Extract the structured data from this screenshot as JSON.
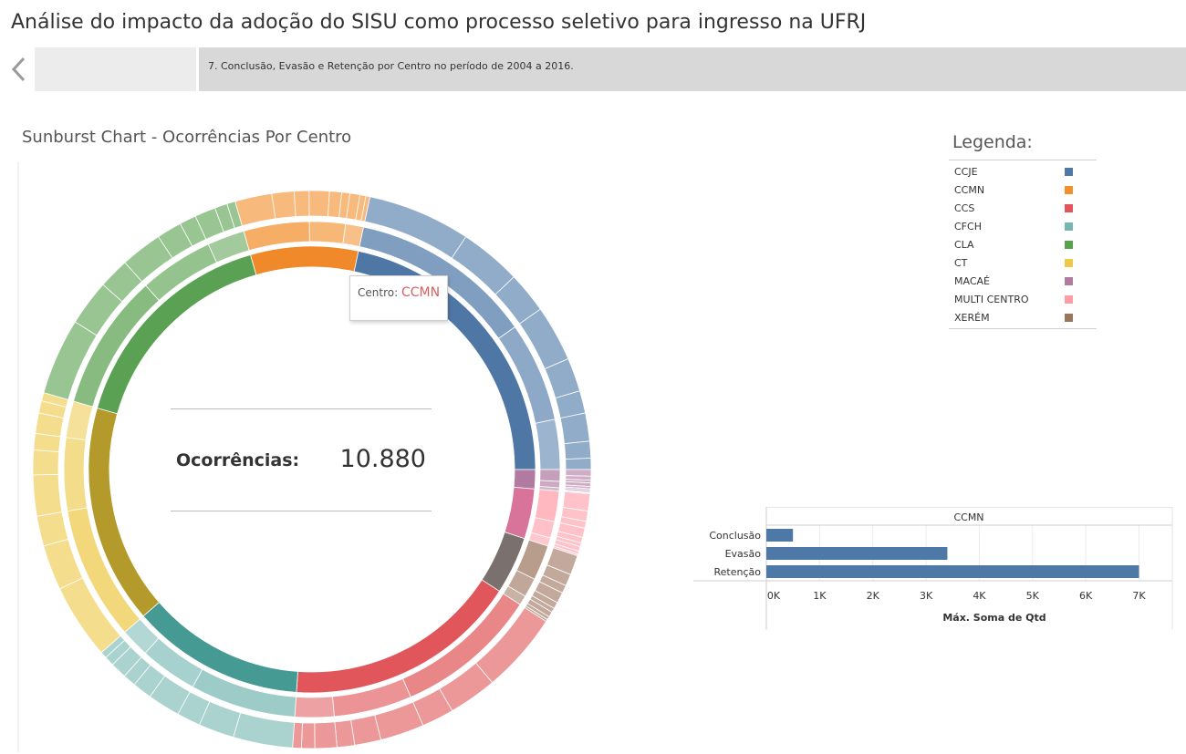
{
  "header": {
    "title": "Análise do impacto da adoção do SISU como processo seletivo para ingresso na UFRJ"
  },
  "story": {
    "back_icon": "chevron-left-icon",
    "points": [
      {
        "caption": "",
        "active": false
      },
      {
        "caption": "7. Conclusão, Evasão e Retenção por Centro no período de 2004 a 2016.",
        "active": true
      }
    ]
  },
  "sunburst": {
    "title": "Sunburst Chart - Ocorrências Por Centro",
    "kpi": {
      "label": "Ocorrências:",
      "value": "10.880"
    },
    "tooltip": {
      "key": "Centro:",
      "value": "CCMN"
    }
  },
  "legend": {
    "title": "Legenda:",
    "items": [
      {
        "label": "CCJE",
        "color": "#4e79a7"
      },
      {
        "label": "CCMN",
        "color": "#f28e2b"
      },
      {
        "label": "CCS",
        "color": "#e15759"
      },
      {
        "label": "CFCH",
        "color": "#76b7b2"
      },
      {
        "label": "CLA",
        "color": "#59a14f"
      },
      {
        "label": "CT",
        "color": "#edc948"
      },
      {
        "label": "MACAÉ",
        "color": "#b07aa1"
      },
      {
        "label": "MULTI CENTRO",
        "color": "#ff9da7"
      },
      {
        "label": "XERÉM",
        "color": "#9c755f"
      }
    ]
  },
  "chart_data": {
    "type": "bar",
    "orientation": "horizontal",
    "header": "CCMN",
    "categories": [
      "Conclusão",
      "Evasão",
      "Retenção"
    ],
    "values": [
      500,
      3400,
      7000
    ],
    "xlabel": "Máx. Soma de Qtd",
    "xlim": [
      0,
      7300
    ],
    "ticks": [
      "0K",
      "1K",
      "2K",
      "3K",
      "4K",
      "5K",
      "6K",
      "7K"
    ],
    "bar_color": "#4e79a7",
    "grid": true
  }
}
